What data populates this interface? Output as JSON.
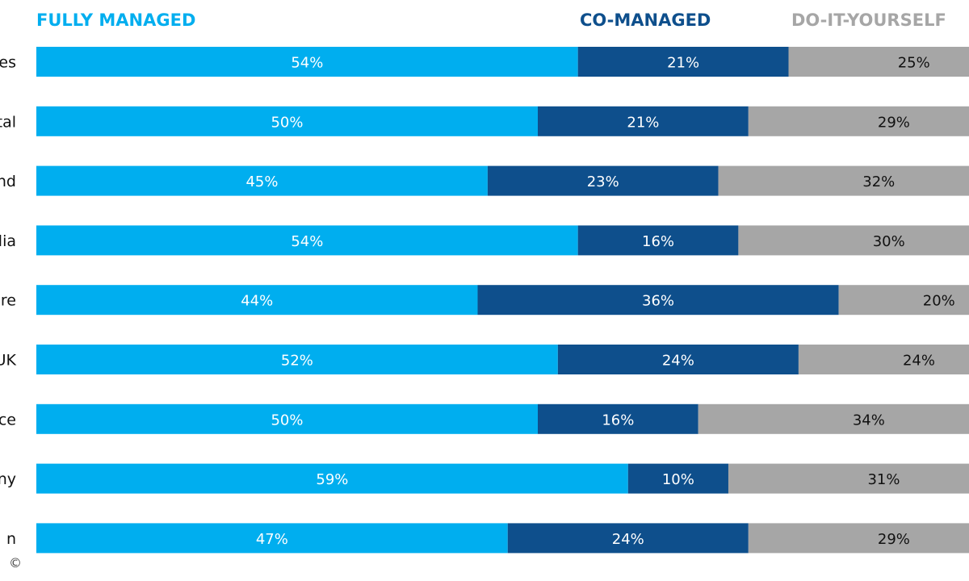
{
  "chart_data": {
    "type": "bar",
    "orientation": "horizontal",
    "stacked": true,
    "normalized_percent": true,
    "legend_position": "top",
    "categories": [
      "es",
      "tal",
      "nd",
      "lia",
      "re",
      "UK",
      "ce",
      "ny",
      "n"
    ],
    "series": [
      {
        "name": "FULLY MANAGED",
        "color": "#00AEEF",
        "label_color": "#ffffff",
        "values": [
          54,
          50,
          45,
          54,
          44,
          52,
          50,
          59,
          47
        ]
      },
      {
        "name": "CO-MANAGED",
        "color": "#0E4F8C",
        "label_color": "#ffffff",
        "values": [
          21,
          21,
          23,
          16,
          36,
          24,
          16,
          10,
          24
        ]
      },
      {
        "name": "DO-IT-YOURSELF",
        "color": "#A6A6A6",
        "label_color": "#111111",
        "values": [
          25,
          29,
          32,
          30,
          20,
          24,
          34,
          31,
          29
        ]
      }
    ],
    "value_suffix": "%",
    "xlim": [
      0,
      100
    ]
  },
  "footer": {
    "copyright": "©"
  }
}
